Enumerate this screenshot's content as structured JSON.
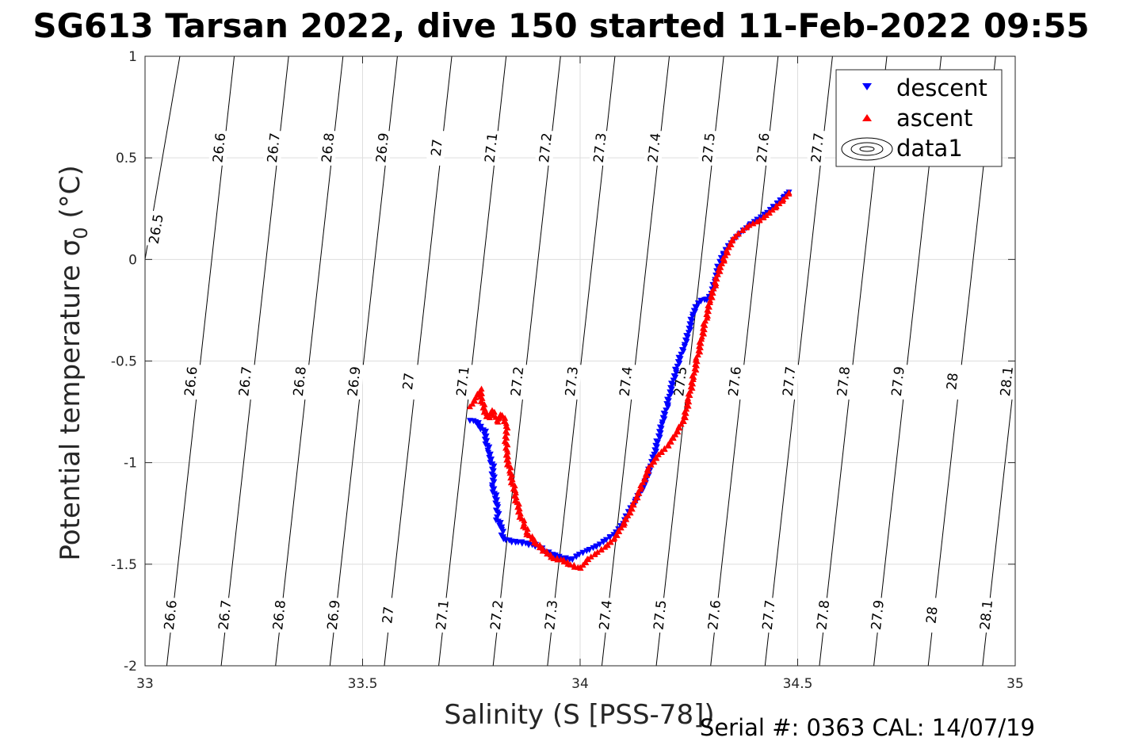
{
  "chart_data": {
    "type": "scatter",
    "title": "SG613 Tarsan 2022, dive 150 started 11-Feb-2022 09:55",
    "xlabel": "Salinity (S [PSS-78])",
    "ylabel": "Potential temperature σ",
    "ylabel_sub": "0",
    "ylabel_unit": " (°C)",
    "xlim": [
      33,
      35
    ],
    "ylim": [
      -2,
      1
    ],
    "xticks": [
      "33",
      "33.5",
      "34",
      "34.5",
      "35"
    ],
    "yticks": [
      "-2",
      "-1.5",
      "-1",
      "-0.5",
      "0",
      "0.5",
      "1"
    ],
    "grid": true,
    "legend_position": "top-right",
    "legend": [
      "descent",
      "ascent",
      "data1"
    ],
    "footer": "Serial #: 0363  CAL: 14/07/19",
    "colors": {
      "descent": "#0000ff",
      "ascent": "#ff0000",
      "contour": "#000000",
      "grid": "#dedede"
    },
    "contours": [
      {
        "level": "26.5",
        "x_top": 33.08,
        "x_bottom": 32.84,
        "labels": [
          {
            "x": 33.025,
            "y": 0.15
          }
        ]
      },
      {
        "level": "26.6",
        "x_top": 33.205,
        "x_bottom": 33.05,
        "labels": [
          {
            "x": 33.17,
            "y": 0.55
          },
          {
            "x": 33.105,
            "y": -0.6
          },
          {
            "x": 33.058,
            "y": -1.75
          }
        ]
      },
      {
        "level": "26.7",
        "x_top": 33.33,
        "x_bottom": 33.175,
        "labels": [
          {
            "x": 33.295,
            "y": 0.55
          },
          {
            "x": 33.23,
            "y": -0.6
          },
          {
            "x": 33.183,
            "y": -1.75
          }
        ]
      },
      {
        "level": "26.8",
        "x_top": 33.455,
        "x_bottom": 33.3,
        "labels": [
          {
            "x": 33.42,
            "y": 0.55
          },
          {
            "x": 33.355,
            "y": -0.6
          },
          {
            "x": 33.308,
            "y": -1.75
          }
        ]
      },
      {
        "level": "26.9",
        "x_top": 33.58,
        "x_bottom": 33.425,
        "labels": [
          {
            "x": 33.545,
            "y": 0.55
          },
          {
            "x": 33.48,
            "y": -0.6
          },
          {
            "x": 33.433,
            "y": -1.75
          }
        ]
      },
      {
        "level": "27",
        "x_top": 33.705,
        "x_bottom": 33.55,
        "labels": [
          {
            "x": 33.67,
            "y": 0.55
          },
          {
            "x": 33.605,
            "y": -0.6
          },
          {
            "x": 33.558,
            "y": -1.75
          }
        ]
      },
      {
        "level": "27.1",
        "x_top": 33.83,
        "x_bottom": 33.675,
        "labels": [
          {
            "x": 33.795,
            "y": 0.55
          },
          {
            "x": 33.73,
            "y": -0.6
          },
          {
            "x": 33.683,
            "y": -1.75
          }
        ]
      },
      {
        "level": "27.2",
        "x_top": 33.955,
        "x_bottom": 33.8,
        "labels": [
          {
            "x": 33.92,
            "y": 0.55
          },
          {
            "x": 33.855,
            "y": -0.6
          },
          {
            "x": 33.808,
            "y": -1.75
          }
        ]
      },
      {
        "level": "27.3",
        "x_top": 34.08,
        "x_bottom": 33.925,
        "labels": [
          {
            "x": 34.045,
            "y": 0.55
          },
          {
            "x": 33.98,
            "y": -0.6
          },
          {
            "x": 33.933,
            "y": -1.75
          }
        ]
      },
      {
        "level": "27.4",
        "x_top": 34.205,
        "x_bottom": 34.05,
        "labels": [
          {
            "x": 34.17,
            "y": 0.55
          },
          {
            "x": 34.105,
            "y": -0.6
          },
          {
            "x": 34.058,
            "y": -1.75
          }
        ]
      },
      {
        "level": "27.5",
        "x_top": 34.33,
        "x_bottom": 34.175,
        "labels": [
          {
            "x": 34.295,
            "y": 0.55
          },
          {
            "x": 34.23,
            "y": -0.6
          },
          {
            "x": 34.183,
            "y": -1.75
          }
        ]
      },
      {
        "level": "27.6",
        "x_top": 34.455,
        "x_bottom": 34.3,
        "labels": [
          {
            "x": 34.42,
            "y": 0.55
          },
          {
            "x": 34.355,
            "y": -0.6
          },
          {
            "x": 34.308,
            "y": -1.75
          }
        ]
      },
      {
        "level": "27.7",
        "x_top": 34.58,
        "x_bottom": 34.425,
        "labels": [
          {
            "x": 34.545,
            "y": 0.55
          },
          {
            "x": 34.48,
            "y": -0.6
          },
          {
            "x": 34.433,
            "y": -1.75
          }
        ]
      },
      {
        "level": "27.8",
        "x_top": 34.705,
        "x_bottom": 34.55,
        "labels": [
          {
            "x": 34.605,
            "y": -0.6
          },
          {
            "x": 34.558,
            "y": -1.75
          }
        ]
      },
      {
        "level": "27.9",
        "x_top": 34.83,
        "x_bottom": 34.675,
        "labels": [
          {
            "x": 34.73,
            "y": -0.6
          },
          {
            "x": 34.683,
            "y": -1.75
          }
        ]
      },
      {
        "level": "28",
        "x_top": 34.955,
        "x_bottom": 34.8,
        "labels": [
          {
            "x": 34.855,
            "y": -0.6
          },
          {
            "x": 34.808,
            "y": -1.75
          }
        ]
      },
      {
        "level": "28.1",
        "x_top": 35.08,
        "x_bottom": 34.925,
        "labels": [
          {
            "x": 34.98,
            "y": -0.6
          },
          {
            "x": 34.933,
            "y": -1.75
          }
        ]
      }
    ],
    "series": [
      {
        "name": "descent",
        "marker": "triangle-down",
        "color": "#0000ff",
        "x": [
          33.75,
          33.76,
          33.78,
          33.79,
          33.8,
          33.8,
          33.81,
          33.81,
          33.82,
          33.82,
          33.83,
          33.84,
          33.86,
          33.88,
          33.9,
          33.92,
          33.94,
          33.96,
          33.98,
          34.0,
          34.02,
          34.04,
          34.06,
          34.08,
          34.1,
          34.11,
          34.13,
          34.15,
          34.16,
          34.17,
          34.18,
          34.19,
          34.2,
          34.21,
          34.22,
          34.23,
          34.24,
          34.25,
          34.26,
          34.27,
          34.28,
          34.29,
          34.3,
          34.31,
          34.32,
          34.33,
          34.35,
          34.37,
          34.39,
          34.41,
          34.43,
          34.45,
          34.47,
          34.48
        ],
        "y": [
          -0.79,
          -0.8,
          -0.85,
          -0.95,
          -1.02,
          -1.12,
          -1.22,
          -1.28,
          -1.33,
          -1.37,
          -1.38,
          -1.39,
          -1.39,
          -1.4,
          -1.41,
          -1.44,
          -1.46,
          -1.47,
          -1.48,
          -1.45,
          -1.43,
          -1.41,
          -1.38,
          -1.35,
          -1.3,
          -1.25,
          -1.18,
          -1.1,
          -1.03,
          -0.96,
          -0.88,
          -0.8,
          -0.72,
          -0.63,
          -0.55,
          -0.48,
          -0.42,
          -0.35,
          -0.27,
          -0.22,
          -0.2,
          -0.2,
          -0.18,
          -0.1,
          -0.02,
          0.03,
          0.09,
          0.13,
          0.17,
          0.2,
          0.23,
          0.27,
          0.31,
          0.33
        ]
      },
      {
        "name": "ascent",
        "marker": "triangle-up",
        "color": "#ff0000",
        "x": [
          33.75,
          33.76,
          33.77,
          33.78,
          33.79,
          33.8,
          33.81,
          33.82,
          33.83,
          33.83,
          33.84,
          33.85,
          33.86,
          33.87,
          33.88,
          33.9,
          33.92,
          33.94,
          33.96,
          33.98,
          34.0,
          34.02,
          34.04,
          34.06,
          34.08,
          34.1,
          34.12,
          34.14,
          34.16,
          34.18,
          34.2,
          34.22,
          34.24,
          34.25,
          34.26,
          34.27,
          34.28,
          34.29,
          34.3,
          34.31,
          34.32,
          34.33,
          34.34,
          34.35,
          34.37,
          34.39,
          34.41,
          34.43,
          34.45,
          34.47,
          34.48
        ],
        "y": [
          -0.72,
          -0.68,
          -0.64,
          -0.75,
          -0.78,
          -0.74,
          -0.8,
          -0.76,
          -0.82,
          -0.95,
          -1.05,
          -1.15,
          -1.24,
          -1.3,
          -1.35,
          -1.4,
          -1.44,
          -1.47,
          -1.48,
          -1.5,
          -1.52,
          -1.47,
          -1.44,
          -1.41,
          -1.37,
          -1.3,
          -1.22,
          -1.12,
          -1.02,
          -0.96,
          -0.92,
          -0.86,
          -0.78,
          -0.68,
          -0.58,
          -0.48,
          -0.38,
          -0.28,
          -0.2,
          -0.12,
          -0.05,
          0.0,
          0.05,
          0.1,
          0.14,
          0.17,
          0.19,
          0.22,
          0.26,
          0.3,
          0.33
        ]
      }
    ]
  }
}
